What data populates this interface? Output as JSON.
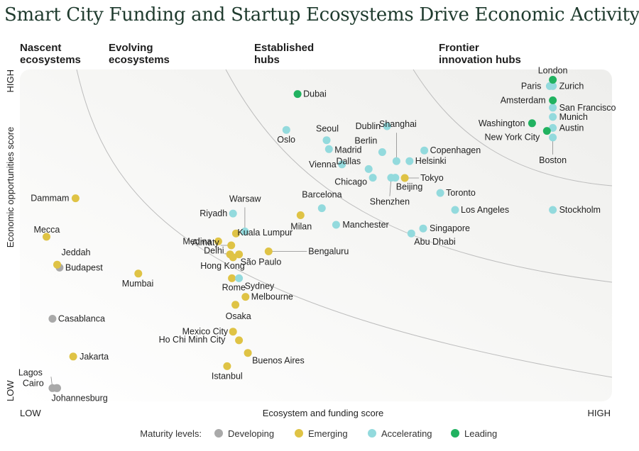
{
  "title": "Smart City Funding and Startup Ecosystems Drive Economic Activity",
  "chart_data": {
    "type": "scatter",
    "title": "Smart City Funding and Startup Ecosystems Drive Economic Activity",
    "xlabel": "Ecosystem and funding score",
    "ylabel": "Economic opportunities score",
    "x_ticks": [
      "LOW",
      "HIGH"
    ],
    "y_ticks": [
      "LOW",
      "HIGH"
    ],
    "xlim": [
      0,
      100
    ],
    "ylim": [
      0,
      100
    ],
    "grid": false,
    "zones": [
      {
        "label_1": "Nascent",
        "label_2": "ecosystems"
      },
      {
        "label_1": "Evolving",
        "label_2": "ecosystems"
      },
      {
        "label_1": "Established",
        "label_2": "hubs"
      },
      {
        "label_1": "Frontier",
        "label_2": "innovation hubs"
      }
    ],
    "series": [
      {
        "name": "Developing",
        "color": "#a9a9a9",
        "points": [
          {
            "label": "Budapest",
            "x": 6.7,
            "y": 40.3
          },
          {
            "label": "Casablanca",
            "x": 5.5,
            "y": 24.9
          },
          {
            "label": "Lagos",
            "x": 5.5,
            "y": 4.0
          },
          {
            "label": "Cairo",
            "x": 6.2,
            "y": 4.0
          },
          {
            "label": "Johannesburg",
            "x": 6.3,
            "y": 4.0
          }
        ]
      },
      {
        "name": "Emerging",
        "color": "#dfc345",
        "points": [
          {
            "label": "Dammam",
            "x": 9.4,
            "y": 61.2
          },
          {
            "label": "Mecca",
            "x": 4.5,
            "y": 49.6
          },
          {
            "label": "Jeddah",
            "x": 6.3,
            "y": 41.2
          },
          {
            "label": "Mumbai",
            "x": 20.0,
            "y": 38.5
          },
          {
            "label": "Jakarta",
            "x": 9.0,
            "y": 13.5
          },
          {
            "label": "Medina",
            "x": 33.5,
            "y": 48.2
          },
          {
            "label": "Kuala Lumpur",
            "x": 36.5,
            "y": 50.6
          },
          {
            "label": "Almaty",
            "x": 35.7,
            "y": 47.0
          },
          {
            "label": "Delhi",
            "x": 35.5,
            "y": 44.3
          },
          {
            "label": "Hong Kong",
            "x": 36.0,
            "y": 43.4
          },
          {
            "label": "São Paulo",
            "x": 37.0,
            "y": 44.3
          },
          {
            "label": "Bengaluru",
            "x": 42.0,
            "y": 45.2
          },
          {
            "label": "Milan",
            "x": 47.4,
            "y": 56.1
          },
          {
            "label": "Rome",
            "x": 35.8,
            "y": 37.1
          },
          {
            "label": "Melbourne",
            "x": 38.1,
            "y": 31.5
          },
          {
            "label": "Osaka",
            "x": 36.4,
            "y": 29.1
          },
          {
            "label": "Mexico City",
            "x": 36.0,
            "y": 21.0
          },
          {
            "label": "Ho Chi Minh City",
            "x": 37.0,
            "y": 18.4
          },
          {
            "label": "Buenos Aires",
            "x": 38.5,
            "y": 14.6
          },
          {
            "label": "Istanbul",
            "x": 35.0,
            "y": 10.6
          },
          {
            "label": "Tokyo",
            "x": 65.0,
            "y": 67.3
          }
        ]
      },
      {
        "name": "Accelerating",
        "color": "#93dadd",
        "points": [
          {
            "label": "Oslo",
            "x": 45.0,
            "y": 81.8
          },
          {
            "label": "Seoul",
            "x": 51.8,
            "y": 78.7
          },
          {
            "label": "Madrid",
            "x": 52.2,
            "y": 76.0
          },
          {
            "label": "Vienna",
            "x": 54.4,
            "y": 71.4
          },
          {
            "label": "Dublin",
            "x": 62.0,
            "y": 82.9
          },
          {
            "label": "Berlin",
            "x": 61.2,
            "y": 75.1
          },
          {
            "label": "Shanghai",
            "x": 63.6,
            "y": 72.4
          },
          {
            "label": "Dallas",
            "x": 58.9,
            "y": 70.0
          },
          {
            "label": "Chicago",
            "x": 59.6,
            "y": 67.4
          },
          {
            "label": "Shenzhen",
            "x": 62.7,
            "y": 67.4
          },
          {
            "label": "Beijing",
            "x": 63.4,
            "y": 67.4
          },
          {
            "label": "Copenhagen",
            "x": 68.3,
            "y": 75.6
          },
          {
            "label": "Helsinki",
            "x": 65.8,
            "y": 72.4
          },
          {
            "label": "Toronto",
            "x": 71.0,
            "y": 62.8
          },
          {
            "label": "Los Angeles",
            "x": 73.5,
            "y": 57.7
          },
          {
            "label": "Stockholm",
            "x": 90.0,
            "y": 57.7
          },
          {
            "label": "Barcelona",
            "x": 51.0,
            "y": 58.2
          },
          {
            "label": "Manchester",
            "x": 53.4,
            "y": 53.2
          },
          {
            "label": "Singapore",
            "x": 68.1,
            "y": 52.1
          },
          {
            "label": "Abu Dhabi",
            "x": 66.1,
            "y": 50.6
          },
          {
            "label": "Riyadh",
            "x": 36.0,
            "y": 56.6
          },
          {
            "label": "Warsaw",
            "x": 38.0,
            "y": 51.2
          },
          {
            "label": "Sydney",
            "x": 37.0,
            "y": 37.1
          },
          {
            "label": "Paris",
            "x": 89.5,
            "y": 95.0
          },
          {
            "label": "Zurich",
            "x": 90.0,
            "y": 95.0
          },
          {
            "label": "San Francisco",
            "x": 90.0,
            "y": 88.5
          },
          {
            "label": "Munich",
            "x": 90.0,
            "y": 85.7
          },
          {
            "label": "Austin",
            "x": 90.0,
            "y": 82.4
          },
          {
            "label": "Boston",
            "x": 90.0,
            "y": 79.5
          }
        ]
      },
      {
        "name": "Leading",
        "color": "#21b260",
        "points": [
          {
            "label": "Dubai",
            "x": 46.9,
            "y": 92.6
          },
          {
            "label": "London",
            "x": 90.0,
            "y": 96.9
          },
          {
            "label": "Amsterdam",
            "x": 90.0,
            "y": 90.7
          },
          {
            "label": "Washington",
            "x": 86.5,
            "y": 83.8
          },
          {
            "label": "New York City",
            "x": 89.0,
            "y": 81.5
          }
        ]
      }
    ]
  },
  "legend": {
    "title": "Maturity levels:"
  }
}
